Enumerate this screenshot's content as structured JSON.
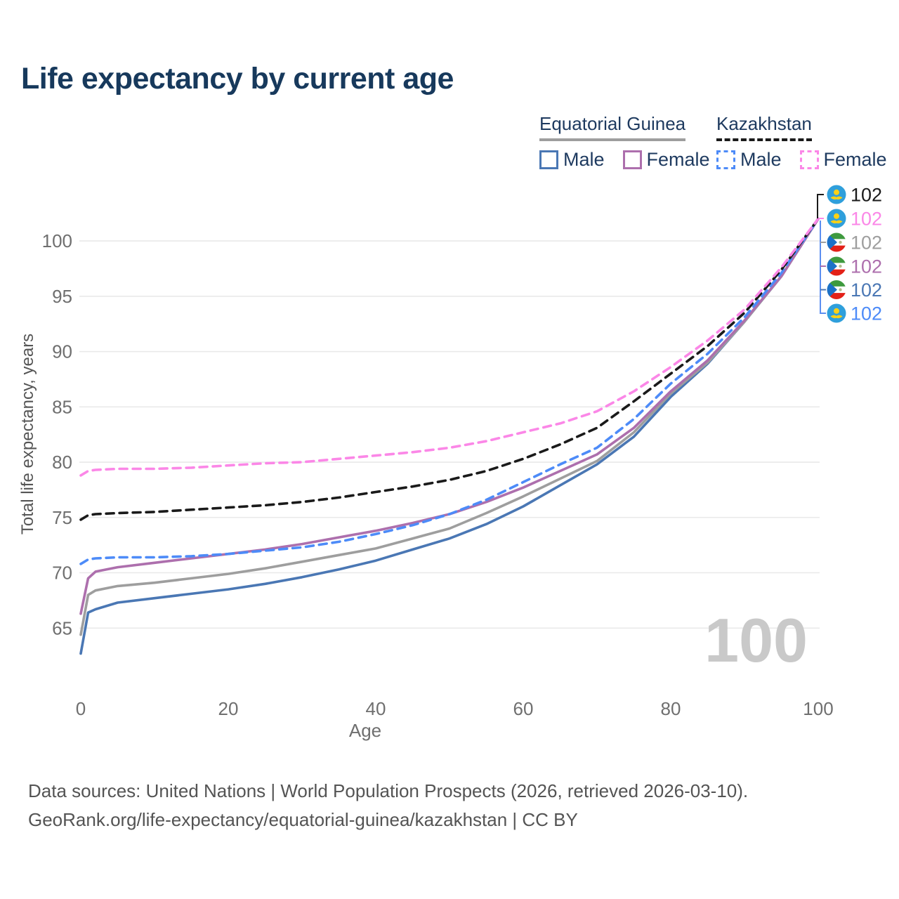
{
  "title": "Life expectancy by current age",
  "legend": {
    "equatorial_guinea": {
      "country": "Equatorial Guinea",
      "male": "Male",
      "female": "Female",
      "male_color": "#4a77b4",
      "female_color": "#ad6fad",
      "underline_color": "#9e9e9e",
      "underline_style": "solid"
    },
    "kazakhstan": {
      "country": "Kazakhstan",
      "male": "Male",
      "female": "Female",
      "male_color": "#4d8bf8",
      "female_color": "#fb87e7",
      "underline_color": "#1a1a1a",
      "underline_style": "dashed"
    }
  },
  "chart_data": {
    "type": "line",
    "title": "Life expectancy by current age",
    "xlabel": "Age",
    "ylabel": "Total life expectancy, years",
    "xlim": [
      0,
      100
    ],
    "ylim": [
      62,
      103
    ],
    "x_ticks": [
      0,
      20,
      40,
      60,
      80,
      100
    ],
    "y_ticks": [
      65,
      70,
      75,
      80,
      85,
      90,
      95,
      100
    ],
    "grid": "horizontal-only",
    "legend_position": "top-right",
    "watermark": "100",
    "x": [
      0,
      1,
      2,
      5,
      10,
      15,
      20,
      25,
      30,
      35,
      40,
      45,
      50,
      55,
      60,
      65,
      70,
      75,
      80,
      85,
      90,
      95,
      100
    ],
    "series": [
      {
        "id": "eg-male",
        "name": "Equatorial Guinea Male",
        "color": "#4a77b4",
        "style": "solid",
        "values": [
          62.7,
          66.4,
          66.7,
          67.3,
          67.7,
          68.1,
          68.5,
          69.0,
          69.6,
          70.3,
          71.1,
          72.1,
          73.1,
          74.4,
          76.0,
          77.9,
          79.8,
          82.3,
          85.9,
          88.9,
          92.7,
          96.8,
          102
        ]
      },
      {
        "id": "eg-average",
        "name": "Equatorial Guinea Average",
        "color": "#9e9e9e",
        "style": "solid",
        "values": [
          64.4,
          68.0,
          68.4,
          68.8,
          69.1,
          69.5,
          69.9,
          70.4,
          71.0,
          71.6,
          72.2,
          73.1,
          74.0,
          75.4,
          76.9,
          78.5,
          80.1,
          82.7,
          86.2,
          89.0,
          92.7,
          96.8,
          102
        ]
      },
      {
        "id": "eg-female",
        "name": "Equatorial Guinea Female",
        "color": "#ad6fad",
        "style": "solid",
        "values": [
          66.3,
          69.5,
          70.1,
          70.5,
          70.9,
          71.3,
          71.7,
          72.1,
          72.6,
          73.2,
          73.8,
          74.5,
          75.3,
          76.4,
          77.7,
          79.2,
          80.7,
          83.1,
          86.4,
          89.2,
          92.8,
          96.8,
          102
        ]
      },
      {
        "id": "kz-male",
        "name": "Kazakhstan Male",
        "color": "#4d8bf8",
        "style": "dashed",
        "values": [
          70.8,
          71.2,
          71.3,
          71.4,
          71.4,
          71.5,
          71.7,
          72.0,
          72.3,
          72.8,
          73.5,
          74.3,
          75.3,
          76.6,
          78.2,
          79.8,
          81.3,
          83.9,
          87.1,
          89.8,
          93.1,
          97.1,
          102
        ]
      },
      {
        "id": "kz-average",
        "name": "Kazakhstan Average",
        "color": "#1a1a1a",
        "style": "dashed",
        "values": [
          74.8,
          75.2,
          75.3,
          75.4,
          75.5,
          75.7,
          75.9,
          76.1,
          76.4,
          76.8,
          77.3,
          77.8,
          78.4,
          79.2,
          80.3,
          81.6,
          83.1,
          85.5,
          88.0,
          90.5,
          93.5,
          97.4,
          102
        ]
      },
      {
        "id": "kz-female",
        "name": "Kazakhstan Female",
        "color": "#fb87e7",
        "style": "dashed",
        "values": [
          78.8,
          79.2,
          79.3,
          79.4,
          79.4,
          79.5,
          79.7,
          79.9,
          80.0,
          80.3,
          80.6,
          80.9,
          81.3,
          81.9,
          82.7,
          83.5,
          84.6,
          86.4,
          88.6,
          91.0,
          93.8,
          97.6,
          102
        ]
      }
    ],
    "end_labels": [
      {
        "flag": "kz",
        "value": "102",
        "color": "#1a1a1a",
        "series": "kz-average"
      },
      {
        "flag": "kz",
        "value": "102",
        "color": "#fb87e7",
        "series": "kz-female"
      },
      {
        "flag": "eq",
        "value": "102",
        "color": "#9e9e9e",
        "series": "eg-average"
      },
      {
        "flag": "eq",
        "value": "102",
        "color": "#ad6fad",
        "series": "eg-female"
      },
      {
        "flag": "eq",
        "value": "102",
        "color": "#4a77b4",
        "series": "eg-male"
      },
      {
        "flag": "kz",
        "value": "102",
        "color": "#4d8bf8",
        "series": "kz-male"
      }
    ]
  },
  "footer": {
    "line1": "Data sources: United Nations | World Population Prospects (2026, retrieved 2026-03-10).",
    "line2": "GeoRank.org/life-expectancy/equatorial-guinea/kazakhstan | CC BY"
  },
  "colors": {
    "title": "#17395c",
    "tick_text": "#6f6f6f",
    "axis_title": "#555555",
    "gridline": "#e9e9e9",
    "watermark": "#c9c9c9"
  }
}
